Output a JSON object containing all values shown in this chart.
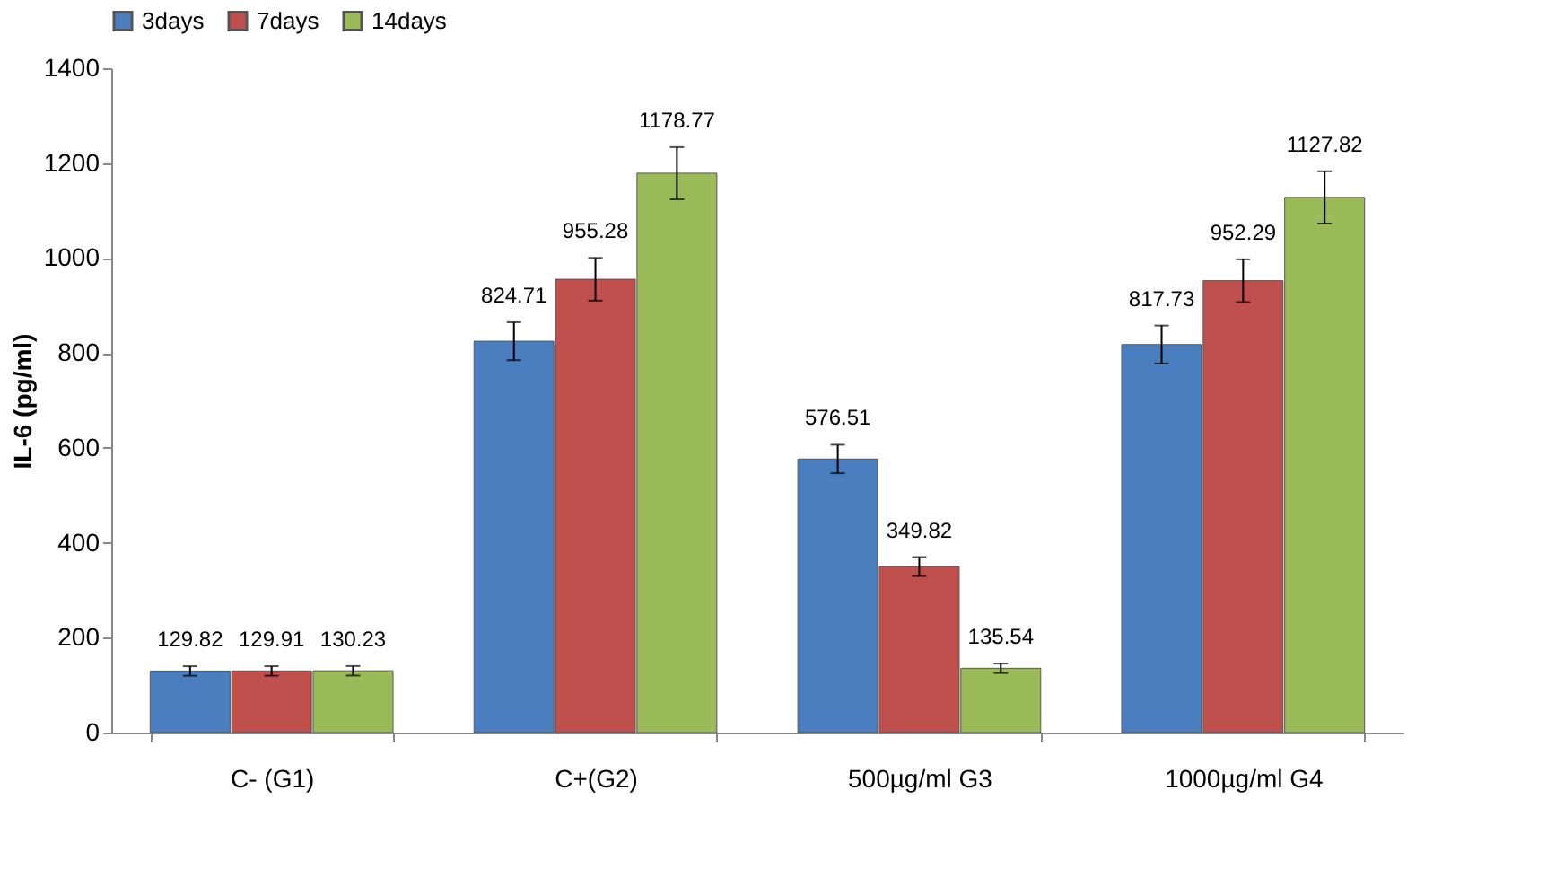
{
  "chart_data": {
    "type": "bar",
    "ylabel": "IL-6 (pg/ml)",
    "categories": [
      "C- (G1)",
      "C+(G2)",
      "500µg/ml G3",
      "1000µg/ml G4"
    ],
    "series": [
      {
        "name": "3days",
        "color": "#4a7ebf",
        "values": [
          129.82,
          824.71,
          576.51,
          817.73
        ],
        "errors": [
          10,
          40,
          30,
          40
        ]
      },
      {
        "name": "7days",
        "color": "#c0504d",
        "values": [
          129.91,
          955.28,
          349.82,
          952.29
        ],
        "errors": [
          10,
          45,
          20,
          45
        ]
      },
      {
        "name": "14days",
        "color": "#9bbb59",
        "values": [
          130.23,
          1178.77,
          135.54,
          1127.82
        ],
        "errors": [
          10,
          55,
          10,
          55
        ]
      }
    ],
    "ylim": [
      0,
      1400
    ],
    "yticks": [
      0,
      200,
      400,
      600,
      800,
      1000,
      1200,
      1400
    ],
    "grid": false,
    "legend": "top",
    "data_labels": true
  }
}
